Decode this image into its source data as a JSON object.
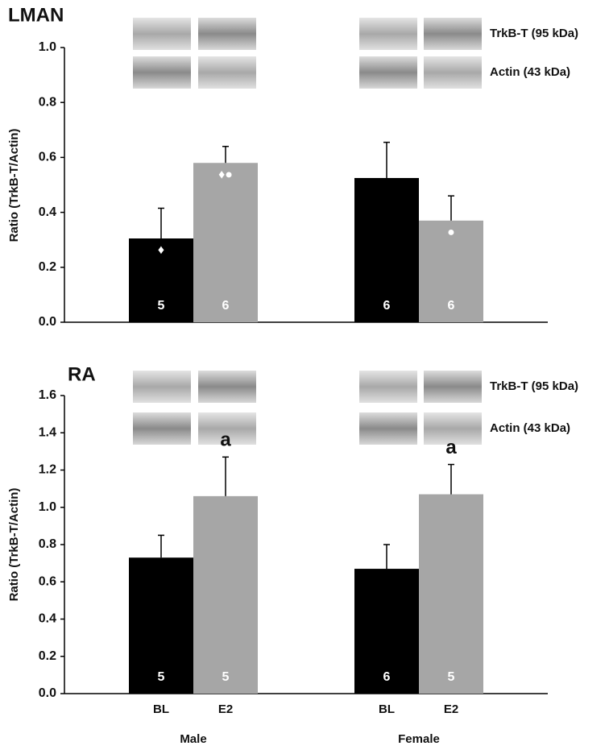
{
  "chart_data": [
    {
      "type": "bar",
      "title": "LMAN",
      "y_label": "Ratio (TrkB-T/Actin)",
      "blot_labels": [
        "TrkB-T (95 kDa)",
        "Actin (43 kDa)"
      ],
      "series": [
        {
          "color": "#000000",
          "values": [
            0.305,
            0.525
          ],
          "errors": [
            0.11,
            0.13
          ],
          "n": [
            5,
            6
          ],
          "symbols": [
            "♦",
            null
          ]
        },
        {
          "color": "#a6a6a6",
          "values": [
            0.58,
            0.37
          ],
          "errors": [
            0.06,
            0.09
          ],
          "n": [
            6,
            6
          ],
          "symbols": [
            "♦●",
            "●"
          ]
        }
      ],
      "ylim": [
        0,
        1
      ],
      "yticks": [
        {
          "value": 0,
          "label": "0.0"
        },
        0.2,
        0.4,
        0.6,
        0.8,
        {
          "value": 1,
          "label": "1.0"
        }
      ]
    },
    {
      "type": "bar",
      "title": "RA",
      "y_label": "Ratio (TrkB-T/Actin)",
      "blot_labels": [
        "TrkB-T (95 kDa)",
        "Actin (43 kDa)"
      ],
      "categories": [
        "Male",
        "Female"
      ],
      "series": [
        {
          "name": "BL",
          "color": "#000000",
          "values": [
            0.73,
            0.67
          ],
          "errors": [
            0.12,
            0.13
          ],
          "n": [
            5,
            6
          ]
        },
        {
          "name": "E2",
          "color": "#a6a6a6",
          "values": [
            1.06,
            1.07
          ],
          "errors": [
            0.21,
            0.16
          ],
          "n": [
            5,
            5
          ],
          "significance": [
            "a",
            "a"
          ]
        }
      ],
      "ylim": [
        0,
        1.6
      ],
      "yticks": [
        {
          "value": 0,
          "label": "0.0"
        },
        0.2,
        0.4,
        0.6,
        0.8,
        {
          "value": 1,
          "label": "1.0"
        },
        1.2,
        1.4,
        1.6
      ]
    }
  ]
}
